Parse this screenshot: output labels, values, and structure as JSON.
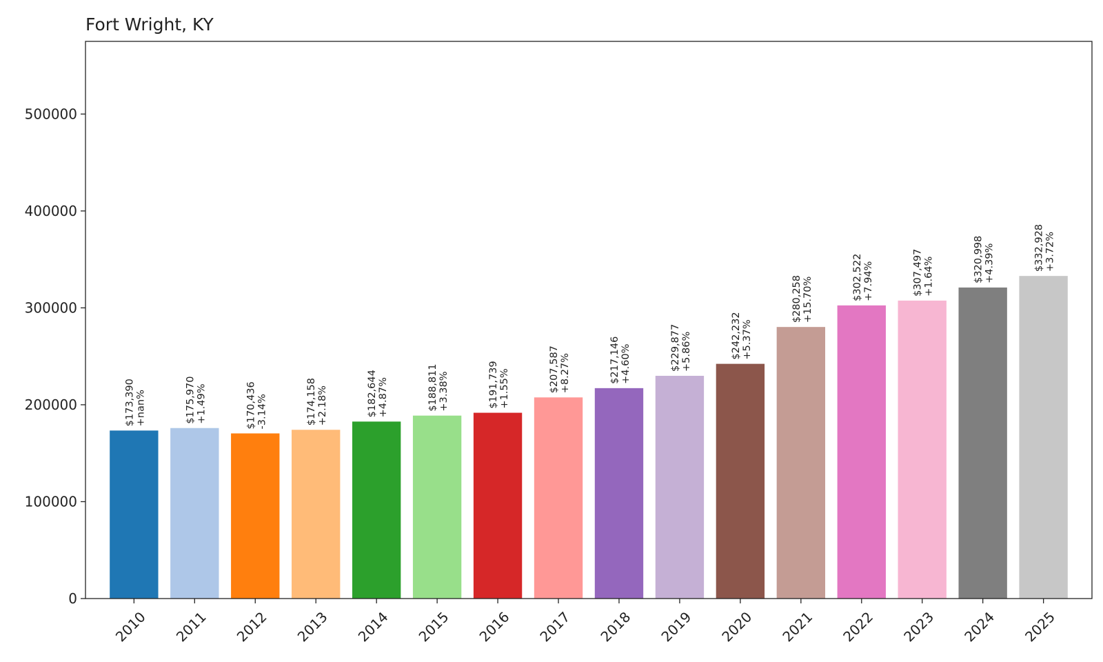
{
  "chart_data": {
    "type": "bar",
    "title": "Fort Wright, KY",
    "xlabel": "",
    "ylabel": "",
    "categories": [
      "2010",
      "2011",
      "2012",
      "2013",
      "2014",
      "2015",
      "2016",
      "2017",
      "2018",
      "2019",
      "2020",
      "2021",
      "2022",
      "2023",
      "2024",
      "2025"
    ],
    "values": [
      173390,
      175970,
      170436,
      174158,
      182644,
      188811,
      191739,
      207587,
      217146,
      229877,
      242232,
      280258,
      302522,
      307497,
      320998,
      332928
    ],
    "value_labels": [
      "$173,390",
      "$175,970",
      "$170,436",
      "$174,158",
      "$182,644",
      "$188,811",
      "$191,739",
      "$207,587",
      "$217,146",
      "$229,877",
      "$242,232",
      "$280,258",
      "$302,522",
      "$307,497",
      "$320,998",
      "$332,928"
    ],
    "change_labels": [
      "+nan%",
      "+1.49%",
      "-3.14%",
      "+2.18%",
      "+4.87%",
      "+3.38%",
      "+1.55%",
      "+8.27%",
      "+4.60%",
      "+5.86%",
      "+5.37%",
      "+15.70%",
      "+7.94%",
      "+1.64%",
      "+4.39%",
      "+3.72%"
    ],
    "colors": [
      "#1f77b4",
      "#aec7e8",
      "#ff7f0e",
      "#ffbb78",
      "#2ca02c",
      "#98df8a",
      "#d62728",
      "#ff9896",
      "#9467bd",
      "#c5b0d5",
      "#8c564b",
      "#c49c94",
      "#e377c2",
      "#f7b6d2",
      "#7f7f7f",
      "#c7c7c7"
    ],
    "ylim": [
      0,
      575000
    ],
    "yticks": [
      0,
      100000,
      200000,
      300000,
      400000,
      500000
    ],
    "ytick_labels": [
      "0",
      "100000",
      "200000",
      "300000",
      "400000",
      "500000"
    ],
    "grid": false,
    "legend": "none"
  }
}
